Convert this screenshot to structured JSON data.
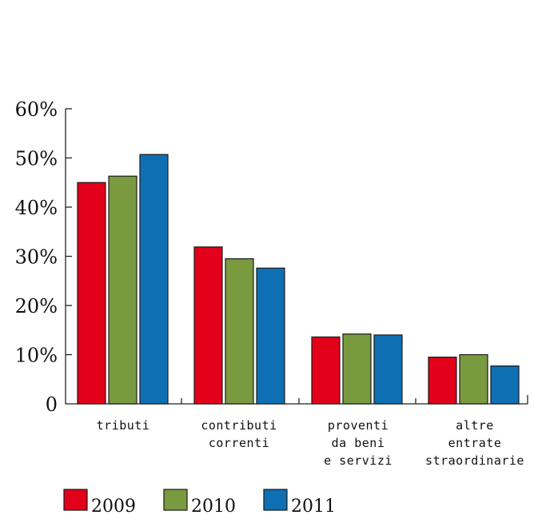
{
  "chart_data": {
    "type": "bar",
    "categories": [
      [
        "tributi"
      ],
      [
        "contributi",
        "correnti"
      ],
      [
        "proventi",
        "da beni",
        "e servizi"
      ],
      [
        "altre",
        "entrate",
        "straordinarie"
      ]
    ],
    "series": [
      {
        "name": "2009",
        "color": "#e2001a",
        "values": [
          45.0,
          31.9,
          13.6,
          9.5
        ]
      },
      {
        "name": "2010",
        "color": "#7a9a3f",
        "values": [
          46.3,
          29.5,
          14.2,
          10.0
        ]
      },
      {
        "name": "2011",
        "color": "#0e6fb3",
        "values": [
          50.7,
          27.6,
          14.0,
          7.7
        ]
      }
    ],
    "yticks": [
      {
        "value": 0,
        "label": "0"
      },
      {
        "value": 10,
        "label": "10%"
      },
      {
        "value": 20,
        "label": "20%"
      },
      {
        "value": 30,
        "label": "30%"
      },
      {
        "value": 40,
        "label": "40%"
      },
      {
        "value": 50,
        "label": "50%"
      },
      {
        "value": 60,
        "label": "60%"
      }
    ],
    "ylim": [
      0,
      60
    ],
    "unit": "%",
    "grid": false,
    "legend_position": "bottom-left"
  }
}
